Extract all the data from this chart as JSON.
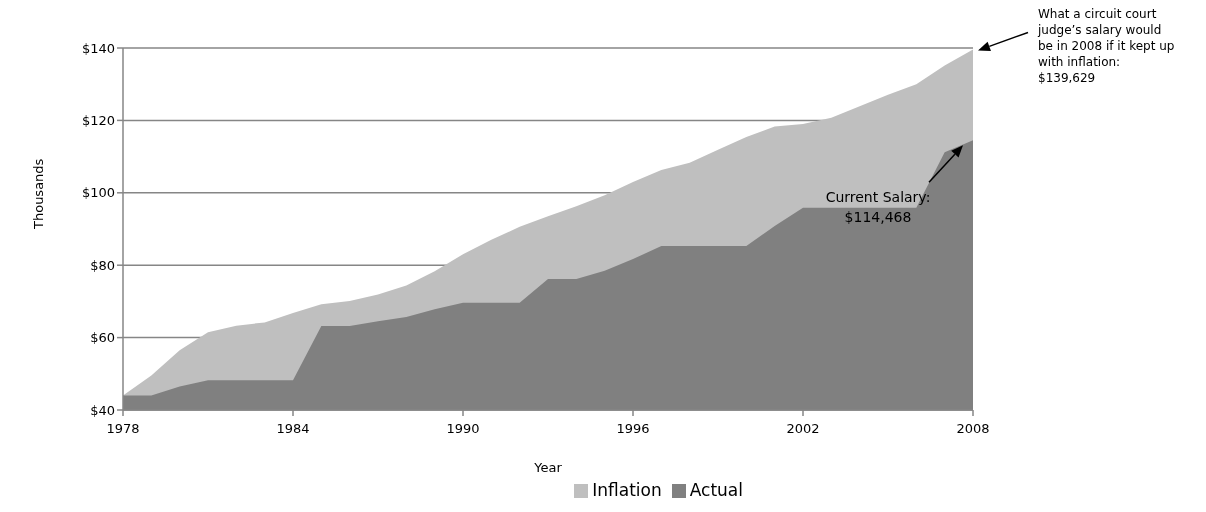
{
  "chart_data": {
    "type": "area",
    "xlabel": "Year",
    "ylabel": "Thousands",
    "x": [
      1978,
      1979,
      1980,
      1981,
      1982,
      1983,
      1984,
      1985,
      1986,
      1987,
      1988,
      1989,
      1990,
      1991,
      1992,
      1993,
      1994,
      1995,
      1996,
      1997,
      1998,
      1999,
      2000,
      2001,
      2002,
      2003,
      2004,
      2005,
      2006,
      2007,
      2008
    ],
    "series": [
      {
        "name": "Inflation",
        "color": "#bfbfbf",
        "values": [
          44,
          49.5,
          56.5,
          61.5,
          63.3,
          64.2,
          66.8,
          69.2,
          70.1,
          71.9,
          74.4,
          78.3,
          83,
          87,
          90.6,
          93.5,
          96.3,
          99.3,
          103,
          106.3,
          108.3,
          111.9,
          115.4,
          118.3,
          119,
          120.7,
          123.9,
          127.1,
          130,
          135.2,
          139.6
        ]
      },
      {
        "name": "Actual",
        "color": "#808080",
        "values": [
          44,
          44,
          46.5,
          48.2,
          48.2,
          48.2,
          48.2,
          63.2,
          63.2,
          64.5,
          65.7,
          67.8,
          69.6,
          69.6,
          69.6,
          76.2,
          76.2,
          78.5,
          81.7,
          85.3,
          85.3,
          85.3,
          85.3,
          90.8,
          95.9,
          95.9,
          95.9,
          95.9,
          95.9,
          111.2,
          114.5
        ]
      }
    ],
    "xlim": [
      1978,
      2008
    ],
    "xticks": [
      1978,
      1984,
      1990,
      1996,
      2002,
      2008
    ],
    "ylim": [
      40,
      140
    ],
    "yticks": [
      {
        "value": 40,
        "label": "$40"
      },
      {
        "value": 60,
        "label": "$60"
      },
      {
        "value": 80,
        "label": "$80"
      },
      {
        "value": 100,
        "label": "$100"
      },
      {
        "value": 120,
        "label": "$120"
      },
      {
        "value": 140,
        "label": "$140"
      }
    ],
    "grid": "y",
    "legend": "bottom right",
    "annotations": [
      "What a circuit court judge’s salary would be in 2008 if it kept up with inflation: $139,629",
      "Current Salary: $114,468"
    ]
  }
}
